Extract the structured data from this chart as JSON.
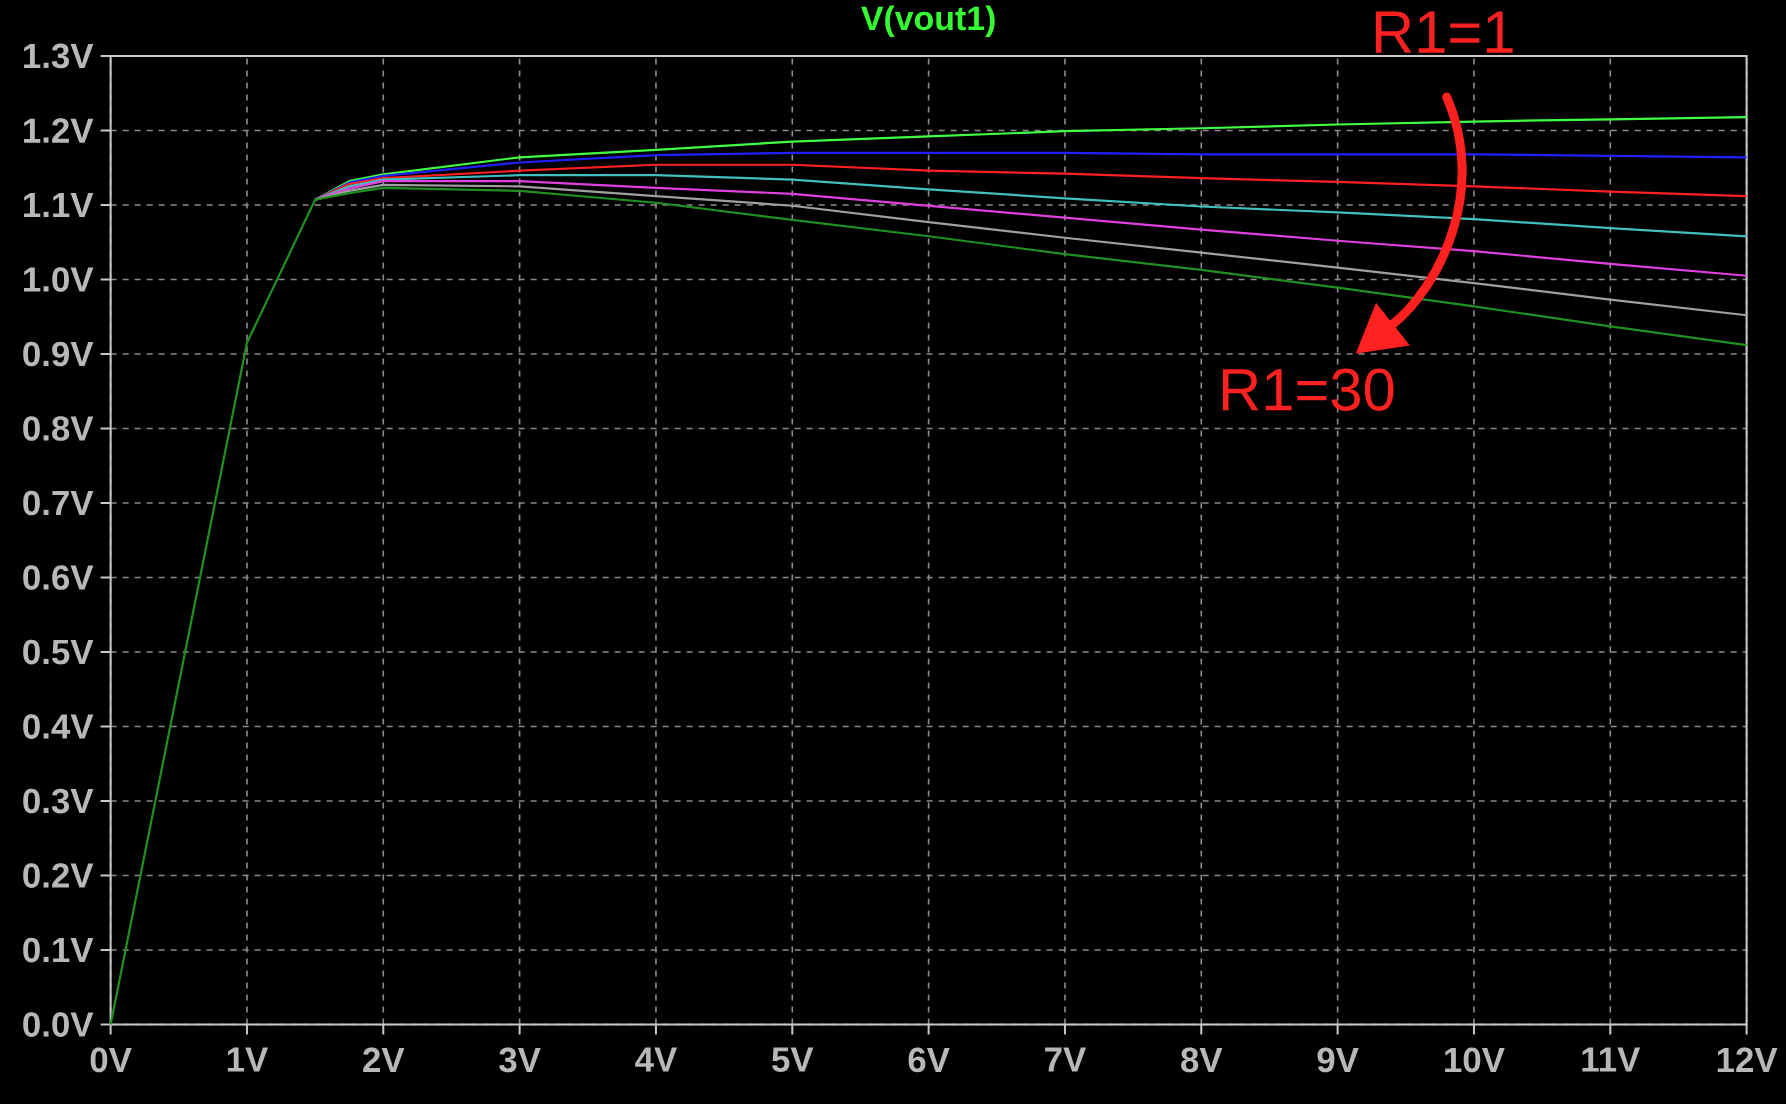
{
  "chart_data": {
    "type": "line",
    "title": "V(vout1)",
    "x": [
      0,
      1,
      1.5,
      1.75,
      2,
      3,
      4,
      5,
      6,
      7,
      8,
      9,
      10,
      11,
      12
    ],
    "series": [
      {
        "color": "#40ff40",
        "values": [
          null,
          null,
          1.107,
          1.132,
          1.141,
          1.164,
          1.174,
          1.185,
          1.192,
          1.199,
          1.203,
          1.208,
          1.212,
          1.215,
          1.218
        ]
      },
      {
        "color": "#2020ff",
        "values": [
          null,
          null,
          1.107,
          1.13,
          1.139,
          1.157,
          1.167,
          1.17,
          1.17,
          1.17,
          1.168,
          1.168,
          1.168,
          1.166,
          1.164
        ]
      },
      {
        "color": "#ff2020",
        "values": [
          null,
          null,
          1.107,
          1.128,
          1.136,
          1.146,
          1.154,
          1.154,
          1.146,
          1.142,
          1.136,
          1.131,
          1.125,
          1.118,
          1.112
        ]
      },
      {
        "color": "#40c0c0",
        "values": [
          null,
          null,
          1.107,
          1.125,
          1.134,
          1.14,
          1.14,
          1.134,
          1.121,
          1.109,
          1.098,
          1.09,
          1.081,
          1.069,
          1.058
        ]
      },
      {
        "color": "#e040e0",
        "values": [
          null,
          null,
          1.107,
          1.122,
          1.132,
          1.132,
          1.123,
          1.115,
          1.099,
          1.083,
          1.067,
          1.052,
          1.038,
          1.021,
          1.005
        ]
      },
      {
        "color": "#a0a0a0",
        "values": [
          null,
          null,
          1.107,
          1.119,
          1.127,
          1.125,
          1.112,
          1.099,
          1.077,
          1.056,
          1.036,
          1.016,
          0.995,
          0.973,
          0.952
        ]
      },
      {
        "color": "#209020",
        "values": [
          0,
          0.915,
          1.107,
          1.116,
          1.123,
          1.119,
          1.103,
          1.08,
          1.058,
          1.034,
          1.013,
          0.989,
          0.964,
          0.937,
          0.912
        ]
      }
    ],
    "xlim": [
      0,
      12
    ],
    "ylim": [
      0,
      1.3
    ],
    "xticks": [
      {
        "value": 0,
        "label": "0V"
      },
      {
        "value": 1,
        "label": "1V"
      },
      {
        "value": 2,
        "label": "2V"
      },
      {
        "value": 3,
        "label": "3V"
      },
      {
        "value": 4,
        "label": "4V"
      },
      {
        "value": 5,
        "label": "5V"
      },
      {
        "value": 6,
        "label": "6V"
      },
      {
        "value": 7,
        "label": "7V"
      },
      {
        "value": 8,
        "label": "8V"
      },
      {
        "value": 9,
        "label": "9V"
      },
      {
        "value": 10,
        "label": "10V"
      },
      {
        "value": 11,
        "label": "11V"
      },
      {
        "value": 12,
        "label": "12V"
      }
    ],
    "yticks": [
      {
        "value": 0,
        "label": "0.0V"
      },
      {
        "value": 0.1,
        "label": "0.1V"
      },
      {
        "value": 0.2,
        "label": "0.2V"
      },
      {
        "value": 0.3,
        "label": "0.3V"
      },
      {
        "value": 0.4,
        "label": "0.4V"
      },
      {
        "value": 0.5,
        "label": "0.5V"
      },
      {
        "value": 0.6,
        "label": "0.6V"
      },
      {
        "value": 0.7,
        "label": "0.7V"
      },
      {
        "value": 0.8,
        "label": "0.8V"
      },
      {
        "value": 0.9,
        "label": "0.9V"
      },
      {
        "value": 1.0,
        "label": "1.0V"
      },
      {
        "value": 1.1,
        "label": "1.1V"
      },
      {
        "value": 1.2,
        "label": "1.2V"
      },
      {
        "value": 1.3,
        "label": "1.3V"
      }
    ],
    "grid": true,
    "annotations": [
      "R1=1",
      "R1=30"
    ]
  }
}
